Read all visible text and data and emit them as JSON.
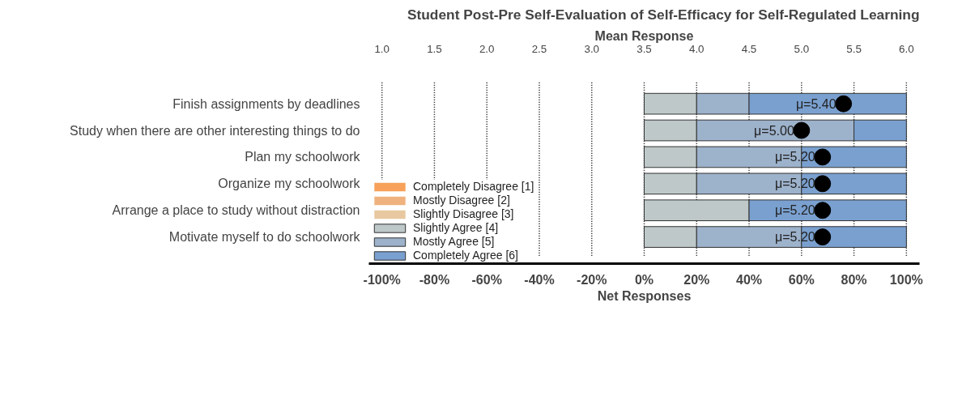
{
  "chart_data": {
    "type": "bar",
    "orientation": "horizontal",
    "stacked": true,
    "title": "Student Post-Pre Self-Evaluation of Self-Efficacy for Self-Regulated Learning",
    "xlabel": "Net Responses",
    "x2label": "Mean Response",
    "categories": [
      "Finish assignments by deadlines",
      "Study when there are other interesting things to do",
      "Plan my schoolwork",
      "Organize my schoolwork",
      "Arrange a place to study without distraction",
      "Motivate myself to do schoolwork"
    ],
    "series": [
      {
        "name": "Completely Disagree [1]",
        "color": "#f7a15a",
        "values": [
          0,
          0,
          0,
          0,
          0,
          0
        ]
      },
      {
        "name": "Mostly Disagree [2]",
        "color": "#efb27e",
        "values": [
          0,
          0,
          0,
          0,
          0,
          0
        ]
      },
      {
        "name": "Slightly Disagree [3]",
        "color": "#e8c8a0",
        "values": [
          0,
          0,
          0,
          0,
          0,
          0
        ]
      },
      {
        "name": "Slightly Agree [4]",
        "color": "#bec8c8",
        "values": [
          20,
          20,
          20,
          20,
          40,
          20
        ]
      },
      {
        "name": "Mostly Agree [5]",
        "color": "#9db2cb",
        "values": [
          20,
          60,
          40,
          40,
          0,
          40
        ]
      },
      {
        "name": "Completely Agree [6]",
        "color": "#7aa0cf",
        "values": [
          60,
          20,
          40,
          40,
          60,
          40
        ]
      },
      {
        "type": "scatter",
        "axis": "x2",
        "marker": "circle",
        "color": "#000000",
        "values": [
          5.4,
          5.0,
          5.2,
          5.2,
          5.2,
          5.2
        ],
        "value_labels": [
          "μ=5.40",
          "μ=5.00",
          "μ=5.20",
          "μ=5.20",
          "μ=5.20",
          "μ=5.20"
        ]
      }
    ],
    "xlim": [
      -105,
      105
    ],
    "xticks": [
      {
        "value": -100,
        "label": "-100%"
      },
      {
        "value": -80,
        "label": "-80%"
      },
      {
        "value": -60,
        "label": "-60%"
      },
      {
        "value": -40,
        "label": "-40%"
      },
      {
        "value": -20,
        "label": "-20%"
      },
      {
        "value": 0,
        "label": "0%"
      },
      {
        "value": 20,
        "label": "20%"
      },
      {
        "value": 40,
        "label": "40%"
      },
      {
        "value": 60,
        "label": "60%"
      },
      {
        "value": 80,
        "label": "80%"
      },
      {
        "value": 100,
        "label": "100%"
      }
    ],
    "x2lim": [
      0.875,
      6.125
    ],
    "x2ticks": [
      {
        "value": 1,
        "label": "1.0"
      },
      1.5,
      {
        "value": 2,
        "label": "2.0"
      },
      2.5,
      {
        "value": 3,
        "label": "3.0"
      },
      3.5,
      {
        "value": 4,
        "label": "4.0"
      },
      4.5,
      {
        "value": 5,
        "label": "5.0"
      },
      5.5,
      {
        "value": 6,
        "label": "6.0"
      }
    ],
    "grid": "x2",
    "legend": "bottom left"
  }
}
